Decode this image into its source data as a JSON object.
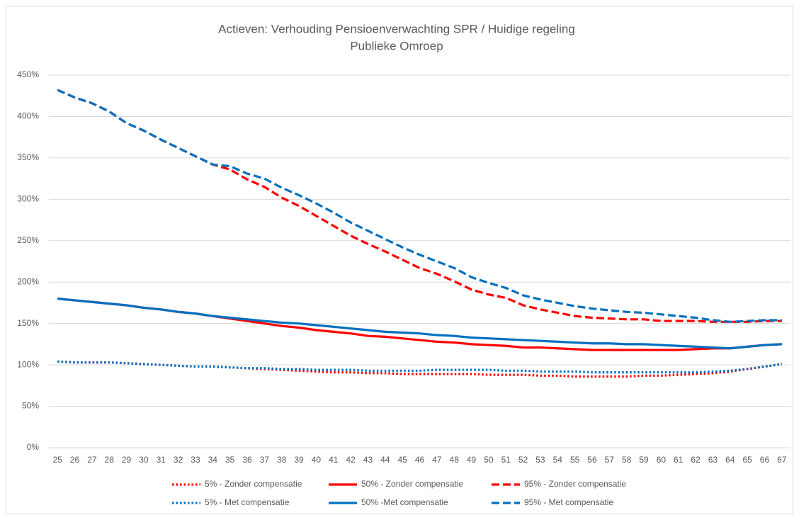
{
  "chart_data": {
    "type": "line",
    "title": "Actieven: Verhouding Pensioenverwachting SPR / Huidige regeling",
    "subtitle": "Publieke Omroep",
    "categories": [
      25,
      26,
      27,
      28,
      29,
      30,
      31,
      32,
      33,
      34,
      35,
      36,
      37,
      38,
      39,
      40,
      41,
      42,
      43,
      44,
      45,
      46,
      47,
      48,
      49,
      50,
      51,
      52,
      53,
      54,
      55,
      56,
      57,
      58,
      59,
      60,
      61,
      62,
      63,
      64,
      65,
      66,
      67
    ],
    "ylim": [
      0,
      450
    ],
    "yticks": [
      {
        "value": 0,
        "label": "0%"
      },
      {
        "value": 50,
        "label": "50%"
      },
      {
        "value": 100,
        "label": "100%"
      },
      {
        "value": 150,
        "label": "150%"
      },
      {
        "value": 200,
        "label": "200%"
      },
      {
        "value": 250,
        "label": "250%"
      },
      {
        "value": 300,
        "label": "300%"
      },
      {
        "value": 350,
        "label": "350%"
      },
      {
        "value": 400,
        "label": "400%"
      },
      {
        "value": 450,
        "label": "450%"
      }
    ],
    "grid": true,
    "legend": "bottom",
    "series": [
      {
        "name": "5% - Zonder compensatie",
        "color": "#ff0000",
        "dash": "dotted",
        "values": [
          104,
          103,
          103,
          103,
          102,
          101,
          100,
          99,
          98,
          98,
          97,
          96,
          95,
          94,
          93,
          92,
          91,
          91,
          90,
          90,
          89,
          89,
          89,
          89,
          89,
          88,
          88,
          88,
          87,
          87,
          86,
          86,
          86,
          86,
          87,
          87,
          88,
          89,
          90,
          92,
          95,
          98,
          101
        ]
      },
      {
        "name": "50% - Zonder compensatie",
        "color": "#ff0000",
        "dash": "solid",
        "values": [
          180,
          178,
          176,
          174,
          172,
          169,
          167,
          164,
          162,
          159,
          156,
          153,
          150,
          147,
          145,
          142,
          140,
          138,
          135,
          134,
          132,
          130,
          128,
          127,
          125,
          124,
          123,
          121,
          121,
          120,
          119,
          118,
          118,
          118,
          118,
          118,
          118,
          119,
          120,
          120,
          122,
          124,
          125
        ]
      },
      {
        "name": "95% - Zonder compensatie",
        "color": "#ff0000",
        "dash": "dashed",
        "values": [
          432,
          423,
          416,
          406,
          392,
          383,
          372,
          362,
          352,
          342,
          336,
          324,
          315,
          302,
          292,
          280,
          268,
          256,
          246,
          237,
          227,
          217,
          210,
          201,
          191,
          185,
          181,
          172,
          167,
          163,
          159,
          157,
          156,
          155,
          155,
          153,
          153,
          153,
          152,
          152,
          152,
          153,
          153
        ]
      },
      {
        "name": "5% - Met compensatie",
        "color": "#0070c0",
        "dash": "dotted",
        "values": [
          104,
          103,
          103,
          103,
          102,
          101,
          100,
          99,
          98,
          98,
          97,
          96,
          96,
          95,
          95,
          94,
          94,
          94,
          93,
          93,
          93,
          93,
          94,
          94,
          94,
          94,
          93,
          93,
          92,
          92,
          92,
          91,
          91,
          91,
          91,
          91,
          91,
          91,
          92,
          93,
          95,
          98,
          101
        ]
      },
      {
        "name": "50% -Met compensatie",
        "color": "#0070c0",
        "dash": "solid",
        "values": [
          180,
          178,
          176,
          174,
          172,
          169,
          167,
          164,
          162,
          159,
          157,
          155,
          153,
          151,
          150,
          148,
          146,
          144,
          142,
          140,
          139,
          138,
          136,
          135,
          133,
          132,
          131,
          130,
          129,
          128,
          127,
          126,
          126,
          125,
          125,
          124,
          123,
          122,
          121,
          120,
          122,
          124,
          125
        ]
      },
      {
        "name": "95% - Met compensatie",
        "color": "#0070c0",
        "dash": "dashed",
        "values": [
          432,
          423,
          416,
          406,
          392,
          383,
          372,
          362,
          352,
          342,
          340,
          331,
          325,
          314,
          305,
          295,
          284,
          272,
          262,
          252,
          242,
          233,
          225,
          217,
          206,
          199,
          193,
          184,
          179,
          175,
          171,
          168,
          166,
          164,
          163,
          161,
          159,
          157,
          154,
          152,
          153,
          154,
          154
        ]
      }
    ]
  }
}
